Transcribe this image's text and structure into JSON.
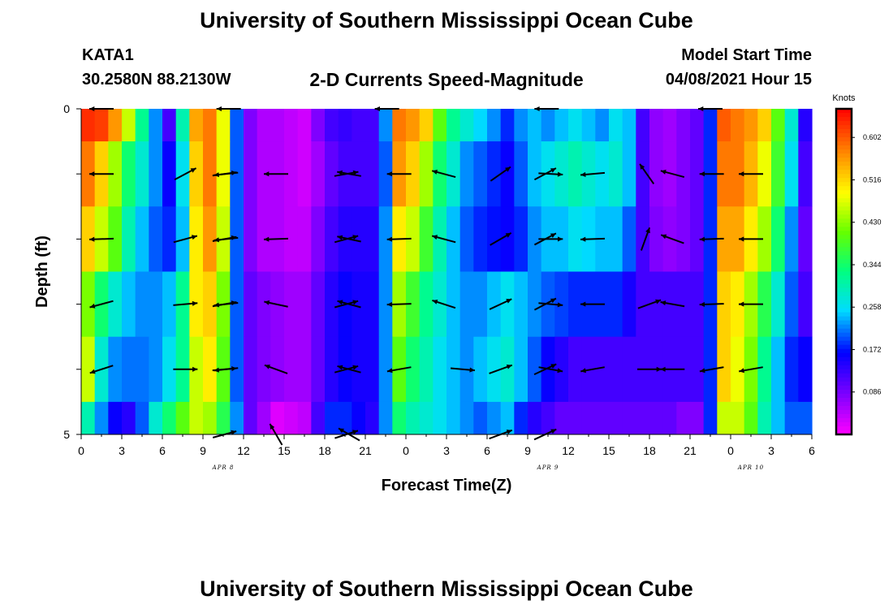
{
  "page": {
    "title_top": "University of Southern Mississippi Ocean Cube",
    "title_bottom": "University of Southern Mississippi Ocean Cube",
    "station": "KATA1",
    "coords": "30.2580N  88.2130W",
    "plot_title": "2-D Currents Speed-Magnitude",
    "model_start_label": "Model Start Time",
    "model_start_value": "04/08/2021 Hour 15"
  },
  "chart_data": {
    "type": "heatmap",
    "title": "2-D Currents Speed-Magnitude",
    "xlabel": "Forecast Time(Z)",
    "ylabel": "Depth (ft)",
    "x_tick_labels": [
      "0",
      "3",
      "6",
      "9",
      "12",
      "15",
      "18",
      "21",
      "0",
      "3",
      "6",
      "9",
      "12",
      "15",
      "18",
      "21",
      "0",
      "3",
      "6"
    ],
    "date_labels": [
      {
        "label": "APR  8",
        "at_index": 3.5
      },
      {
        "label": "APR  9",
        "at_index": 11.5
      },
      {
        "label": "APR  10",
        "at_index": 16.5
      }
    ],
    "y_tick_labels": [
      {
        "label": "0",
        "depth": 0
      },
      {
        "label": "5",
        "depth": 5
      }
    ],
    "ylim": [
      0,
      5
    ],
    "colorbar": {
      "unit": "Knots",
      "range": [
        0.0,
        0.66
      ],
      "tick_labels": [
        "0.602",
        "0.516",
        "0.430",
        "0.344",
        "0.258",
        "0.172",
        "0.086"
      ],
      "tick_values": [
        0.602,
        0.516,
        0.43,
        0.344,
        0.258,
        0.172,
        0.086
      ]
    },
    "speed_grid_knots": [
      [
        0.63,
        0.62,
        0.56,
        0.46,
        0.32,
        0.22,
        0.12,
        0.3,
        0.55,
        0.58,
        0.48,
        0.2,
        0.08,
        0.05,
        0.05,
        0.04,
        0.03,
        0.08,
        0.12,
        0.13,
        0.12,
        0.12,
        0.22,
        0.58,
        0.56,
        0.52,
        0.4,
        0.32,
        0.28,
        0.25,
        0.22,
        0.18,
        0.22,
        0.24,
        0.22,
        0.24,
        0.26,
        0.24,
        0.22,
        0.26,
        0.24,
        0.12,
        0.07,
        0.06,
        0.08,
        0.1,
        0.18,
        0.6,
        0.58,
        0.56,
        0.52,
        0.4,
        0.28,
        0.14
      ],
      [
        0.58,
        0.52,
        0.44,
        0.34,
        0.28,
        0.22,
        0.16,
        0.26,
        0.52,
        0.58,
        0.48,
        0.2,
        0.08,
        0.05,
        0.05,
        0.04,
        0.03,
        0.06,
        0.1,
        0.12,
        0.12,
        0.12,
        0.2,
        0.56,
        0.52,
        0.44,
        0.34,
        0.28,
        0.22,
        0.2,
        0.18,
        0.16,
        0.2,
        0.24,
        0.26,
        0.28,
        0.3,
        0.28,
        0.26,
        0.28,
        0.24,
        0.12,
        0.07,
        0.06,
        0.08,
        0.1,
        0.18,
        0.58,
        0.58,
        0.54,
        0.48,
        0.38,
        0.26,
        0.12
      ],
      [
        0.52,
        0.46,
        0.4,
        0.3,
        0.24,
        0.2,
        0.18,
        0.24,
        0.5,
        0.56,
        0.46,
        0.2,
        0.08,
        0.05,
        0.05,
        0.04,
        0.04,
        0.08,
        0.12,
        0.14,
        0.14,
        0.14,
        0.22,
        0.5,
        0.46,
        0.38,
        0.3,
        0.24,
        0.2,
        0.18,
        0.17,
        0.16,
        0.18,
        0.22,
        0.24,
        0.24,
        0.26,
        0.25,
        0.24,
        0.24,
        0.2,
        0.12,
        0.08,
        0.07,
        0.08,
        0.1,
        0.18,
        0.55,
        0.55,
        0.5,
        0.44,
        0.34,
        0.22,
        0.1
      ],
      [
        0.42,
        0.34,
        0.28,
        0.24,
        0.22,
        0.22,
        0.24,
        0.32,
        0.5,
        0.52,
        0.42,
        0.2,
        0.1,
        0.08,
        0.07,
        0.06,
        0.06,
        0.1,
        0.14,
        0.16,
        0.15,
        0.15,
        0.22,
        0.44,
        0.38,
        0.32,
        0.28,
        0.24,
        0.22,
        0.22,
        0.24,
        0.26,
        0.24,
        0.22,
        0.2,
        0.19,
        0.18,
        0.18,
        0.18,
        0.18,
        0.15,
        0.12,
        0.12,
        0.12,
        0.12,
        0.12,
        0.18,
        0.52,
        0.5,
        0.44,
        0.36,
        0.28,
        0.2,
        0.12
      ],
      [
        0.46,
        0.28,
        0.22,
        0.21,
        0.21,
        0.22,
        0.26,
        0.32,
        0.46,
        0.5,
        0.4,
        0.2,
        0.1,
        0.08,
        0.07,
        0.06,
        0.06,
        0.1,
        0.14,
        0.16,
        0.15,
        0.15,
        0.22,
        0.4,
        0.34,
        0.3,
        0.26,
        0.24,
        0.22,
        0.24,
        0.26,
        0.28,
        0.24,
        0.2,
        0.16,
        0.14,
        0.12,
        0.12,
        0.12,
        0.12,
        0.12,
        0.12,
        0.12,
        0.12,
        0.12,
        0.12,
        0.18,
        0.52,
        0.48,
        0.42,
        0.32,
        0.24,
        0.18,
        0.16
      ],
      [
        0.3,
        0.22,
        0.16,
        0.14,
        0.2,
        0.28,
        0.34,
        0.4,
        0.46,
        0.44,
        0.36,
        0.22,
        0.1,
        0.06,
        0.02,
        0.03,
        0.04,
        0.12,
        0.18,
        0.18,
        0.16,
        0.14,
        0.22,
        0.34,
        0.3,
        0.28,
        0.26,
        0.24,
        0.22,
        0.2,
        0.22,
        0.24,
        0.18,
        0.14,
        0.12,
        0.1,
        0.1,
        0.1,
        0.1,
        0.1,
        0.1,
        0.1,
        0.1,
        0.1,
        0.08,
        0.08,
        0.18,
        0.46,
        0.46,
        0.4,
        0.3,
        0.24,
        0.2,
        0.2
      ]
    ],
    "vectors": [
      {
        "t": 1.5,
        "d": 0,
        "angle": 180
      },
      {
        "t": 10.9,
        "d": 0,
        "angle": 180
      },
      {
        "t": 22.6,
        "d": 0,
        "angle": 180
      },
      {
        "t": 34.4,
        "d": 0,
        "angle": 180
      },
      {
        "t": 46.5,
        "d": 0,
        "angle": 180
      },
      {
        "t": 1.5,
        "d": 1,
        "angle": 180
      },
      {
        "t": 7.7,
        "d": 1,
        "angle": 28
      },
      {
        "t": 10.6,
        "d": 1,
        "angle": 8
      },
      {
        "t": 10.7,
        "d": 1,
        "angle": 186
      },
      {
        "t": 14.4,
        "d": 1,
        "angle": 180
      },
      {
        "t": 19.6,
        "d": 1,
        "angle": 10
      },
      {
        "t": 19.8,
        "d": 1,
        "angle": 170
      },
      {
        "t": 23.5,
        "d": 1,
        "angle": 180
      },
      {
        "t": 26.8,
        "d": 1,
        "angle": 165
      },
      {
        "t": 31.0,
        "d": 1,
        "angle": 35
      },
      {
        "t": 34.3,
        "d": 1,
        "angle": 28
      },
      {
        "t": 34.7,
        "d": 1,
        "angle": -3
      },
      {
        "t": 37.8,
        "d": 1,
        "angle": 185
      },
      {
        "t": 41.8,
        "d": 1,
        "angle": 125
      },
      {
        "t": 43.7,
        "d": 1,
        "angle": 165
      },
      {
        "t": 46.6,
        "d": 1,
        "angle": 180
      },
      {
        "t": 49.5,
        "d": 1,
        "angle": 180
      },
      {
        "t": 1.5,
        "d": 2,
        "angle": 182
      },
      {
        "t": 7.7,
        "d": 2,
        "angle": 15
      },
      {
        "t": 10.6,
        "d": 2,
        "angle": 10
      },
      {
        "t": 10.7,
        "d": 2,
        "angle": 186
      },
      {
        "t": 14.4,
        "d": 2,
        "angle": 182
      },
      {
        "t": 19.6,
        "d": 2,
        "angle": 15
      },
      {
        "t": 19.8,
        "d": 2,
        "angle": 168
      },
      {
        "t": 23.5,
        "d": 2,
        "angle": 182
      },
      {
        "t": 26.8,
        "d": 2,
        "angle": 165
      },
      {
        "t": 31.0,
        "d": 2,
        "angle": 30
      },
      {
        "t": 34.3,
        "d": 2,
        "angle": 28
      },
      {
        "t": 34.7,
        "d": 2,
        "angle": 0
      },
      {
        "t": 37.8,
        "d": 2,
        "angle": 182
      },
      {
        "t": 41.7,
        "d": 2,
        "angle": 70
      },
      {
        "t": 43.7,
        "d": 2,
        "angle": 160
      },
      {
        "t": 46.6,
        "d": 2,
        "angle": 182
      },
      {
        "t": 49.5,
        "d": 2,
        "angle": 180
      },
      {
        "t": 1.5,
        "d": 3,
        "angle": 195
      },
      {
        "t": 7.7,
        "d": 3,
        "angle": 5
      },
      {
        "t": 10.6,
        "d": 3,
        "angle": 10
      },
      {
        "t": 10.7,
        "d": 3,
        "angle": 186
      },
      {
        "t": 14.4,
        "d": 3,
        "angle": 168
      },
      {
        "t": 19.6,
        "d": 3,
        "angle": 15
      },
      {
        "t": 19.8,
        "d": 3,
        "angle": 165
      },
      {
        "t": 23.5,
        "d": 3,
        "angle": 182
      },
      {
        "t": 26.8,
        "d": 3,
        "angle": 162
      },
      {
        "t": 31.0,
        "d": 3,
        "angle": 25
      },
      {
        "t": 34.3,
        "d": 3,
        "angle": 28
      },
      {
        "t": 34.7,
        "d": 3,
        "angle": -5
      },
      {
        "t": 37.8,
        "d": 3,
        "angle": 180
      },
      {
        "t": 42.0,
        "d": 3,
        "angle": 20
      },
      {
        "t": 43.7,
        "d": 3,
        "angle": 170
      },
      {
        "t": 46.6,
        "d": 3,
        "angle": 182
      },
      {
        "t": 49.5,
        "d": 3,
        "angle": 180
      },
      {
        "t": 1.5,
        "d": 4,
        "angle": 198
      },
      {
        "t": 7.7,
        "d": 4,
        "angle": 0
      },
      {
        "t": 10.6,
        "d": 4,
        "angle": 5
      },
      {
        "t": 10.7,
        "d": 4,
        "angle": 186
      },
      {
        "t": 14.4,
        "d": 4,
        "angle": 160
      },
      {
        "t": 19.6,
        "d": 4,
        "angle": 15
      },
      {
        "t": 19.8,
        "d": 4,
        "angle": 165
      },
      {
        "t": 23.5,
        "d": 4,
        "angle": 190
      },
      {
        "t": 28.2,
        "d": 4,
        "angle": -5
      },
      {
        "t": 31.0,
        "d": 4,
        "angle": 20
      },
      {
        "t": 34.3,
        "d": 4,
        "angle": 25
      },
      {
        "t": 34.7,
        "d": 4,
        "angle": -10
      },
      {
        "t": 37.8,
        "d": 4,
        "angle": 190
      },
      {
        "t": 42.0,
        "d": 4,
        "angle": 0
      },
      {
        "t": 43.7,
        "d": 4,
        "angle": 180
      },
      {
        "t": 46.6,
        "d": 4,
        "angle": 190
      },
      {
        "t": 49.5,
        "d": 4,
        "angle": 190
      },
      {
        "t": 10.6,
        "d": 5,
        "angle": 15
      },
      {
        "t": 14.4,
        "d": 5,
        "angle": 120
      },
      {
        "t": 19.6,
        "d": 5,
        "angle": 18
      },
      {
        "t": 19.8,
        "d": 5,
        "angle": 150
      },
      {
        "t": 31.0,
        "d": 5,
        "angle": 20
      },
      {
        "t": 34.3,
        "d": 5,
        "angle": 25
      }
    ]
  }
}
